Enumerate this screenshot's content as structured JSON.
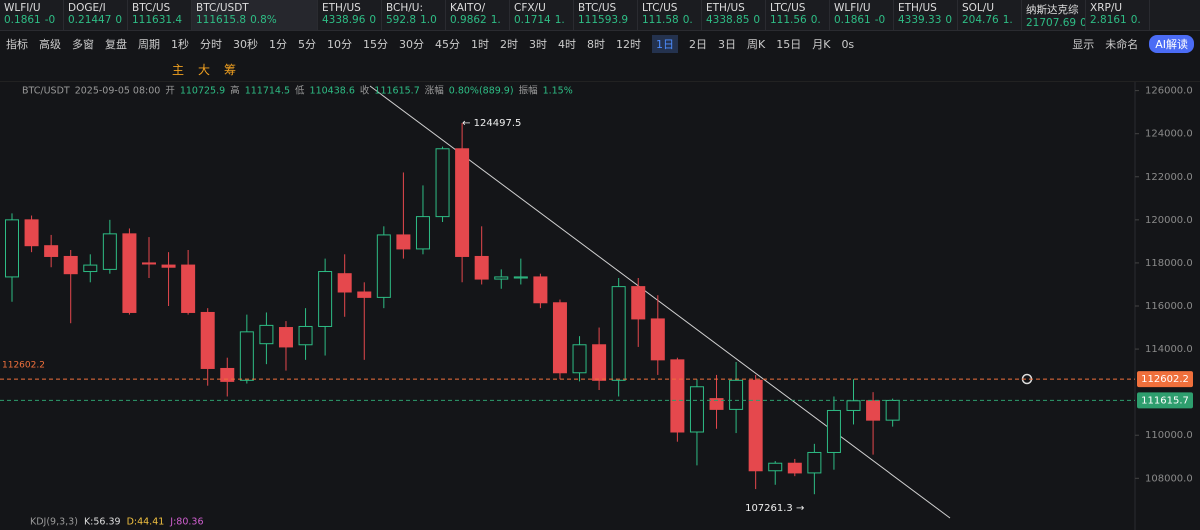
{
  "tabs": [
    {
      "name": "WLFI/U",
      "price": "0.1861",
      "change": "-0"
    },
    {
      "name": "DOGE/I",
      "price": "0.21447",
      "change": "0"
    },
    {
      "name": "BTC/US",
      "price": "111631.4"
    },
    {
      "name": "BTC/USDT",
      "price": "111615.8",
      "change": "0.8%",
      "active": true
    },
    {
      "name": "ETH/US",
      "price": "4338.96",
      "change": "0"
    },
    {
      "name": "BCH/U:",
      "price": "592.8",
      "change": "1.0"
    },
    {
      "name": "KAITO/",
      "price": "0.9862",
      "change": "1."
    },
    {
      "name": "CFX/U",
      "price": "0.1714",
      "change": "1."
    },
    {
      "name": "BTC/US",
      "price": "111593.9"
    },
    {
      "name": "LTC/US",
      "price": "111.58",
      "change": "0."
    },
    {
      "name": "ETH/US",
      "price": "4338.85",
      "change": "0"
    },
    {
      "name": "LTC/US",
      "price": "111.56",
      "change": "0."
    },
    {
      "name": "WLFI/U",
      "price": "0.1861",
      "change": "-0"
    },
    {
      "name": "ETH/US",
      "price": "4339.33",
      "change": "0"
    },
    {
      "name": "SOL/U",
      "price": "204.76",
      "change": "1."
    },
    {
      "name": "纳斯达克综",
      "price": "21707.69",
      "change": "0."
    },
    {
      "name": "XRP/U",
      "price": "2.8161",
      "change": "0."
    }
  ],
  "toolbar": {
    "items": [
      "指标",
      "高级",
      "多窗",
      "复盘",
      "周期",
      "1秒",
      "分时",
      "30秒",
      "1分",
      "5分",
      "10分",
      "15分",
      "30分",
      "45分",
      "1时",
      "2时",
      "3时",
      "4时",
      "8时",
      "12时",
      "1日",
      "2日",
      "3日",
      "周K",
      "15日",
      "月K",
      "0s"
    ],
    "active": "1日",
    "right": [
      "显示",
      "未命名"
    ],
    "ai": "AI解读"
  },
  "draw_tools": [
    "主",
    "大",
    "筹"
  ],
  "info": {
    "symbol": "BTC/USDT",
    "time": "2025-09-05 08:00",
    "fields": [
      [
        "开",
        "110725.9"
      ],
      [
        "高",
        "111714.5"
      ],
      [
        "低",
        "110438.6"
      ],
      [
        "收",
        "111615.7"
      ],
      [
        "涨幅",
        "0.80%(889.9)"
      ],
      [
        "振幅",
        "1.15%"
      ]
    ]
  },
  "indicator": {
    "name": "KDJ(9,3,3)",
    "values": [
      "K:56.39",
      "D:44.41",
      "J:80.36"
    ]
  },
  "chart_data": {
    "type": "candlestick",
    "open": [
      117350,
      120000,
      118800,
      118300,
      117600,
      117700,
      119350,
      118000,
      117900,
      117900,
      115700,
      113100,
      112550,
      114250,
      115000,
      114200,
      115050,
      117500,
      116650,
      116400,
      119300,
      118650,
      120150,
      123300,
      118300,
      117250,
      117300,
      117350,
      116150,
      112900,
      114200,
      112550,
      116900,
      115400,
      113500,
      110150,
      111700,
      111200,
      112550,
      108350,
      108700,
      108250,
      109200,
      111150,
      111600,
      110700
    ],
    "high": [
      120300,
      120200,
      119300,
      118600,
      118400,
      120000,
      119600,
      119200,
      118500,
      118600,
      115900,
      113600,
      115600,
      115700,
      115300,
      115900,
      118200,
      118400,
      117100,
      119700,
      122200,
      121600,
      123400,
      124497.5,
      119700,
      117700,
      118200,
      117500,
      116300,
      114600,
      115000,
      117300,
      117300,
      116500,
      113600,
      112600,
      112800,
      113400,
      112800,
      108800,
      108900,
      109600,
      111800,
      112600,
      112000,
      111700
    ],
    "low": [
      116200,
      118500,
      117800,
      115200,
      117100,
      117500,
      115600,
      117300,
      116000,
      115600,
      112300,
      111800,
      112400,
      113300,
      113000,
      113500,
      113700,
      115500,
      113500,
      115900,
      118200,
      118400,
      119900,
      117100,
      117000,
      116800,
      117000,
      115900,
      112600,
      112500,
      112100,
      111800,
      114100,
      112800,
      109700,
      108600,
      110300,
      110100,
      107500,
      107700,
      108100,
      107261.3,
      108400,
      110500,
      109100,
      110400
    ],
    "close": [
      120000,
      118800,
      118300,
      117500,
      117900,
      119350,
      115700,
      117950,
      117800,
      115700,
      113100,
      112500,
      114800,
      115100,
      114100,
      115050,
      117600,
      116650,
      116400,
      119300,
      118650,
      120150,
      123300,
      118300,
      117250,
      117350,
      117350,
      116150,
      112900,
      114200,
      112550,
      116900,
      115400,
      113500,
      110150,
      112250,
      111200,
      112550,
      108350,
      108700,
      108250,
      109200,
      111150,
      111600,
      110700,
      111615.7
    ],
    "up_color": "#2ebd85",
    "down_color": "#e5484d",
    "ylim": [
      105600,
      126400
    ],
    "yticks": [
      {
        "value": 108000,
        "label": "108000.0"
      },
      {
        "value": 110000,
        "label": "110000.0"
      },
      {
        "value": 114000,
        "label": "114000.0"
      },
      {
        "value": 116000,
        "label": "116000.0"
      },
      {
        "value": 118000,
        "label": "118000.0"
      },
      {
        "value": 120000,
        "label": "120000.0"
      },
      {
        "value": 122000,
        "label": "122000.0"
      },
      {
        "value": 124000,
        "label": "124000.0"
      },
      {
        "value": 126000,
        "label": "126000.0"
      }
    ],
    "grid": false,
    "price_lines": [
      {
        "value": 112602.2,
        "color": "#f0703c"
      },
      {
        "value": 111615.7,
        "color": "#2e9e6e"
      }
    ],
    "annotations": [
      {
        "index": 23,
        "value": 124497.5,
        "label": "← 124497.5"
      },
      {
        "index": 41,
        "value": 107261.3,
        "label": "107261.3 →"
      }
    ]
  }
}
